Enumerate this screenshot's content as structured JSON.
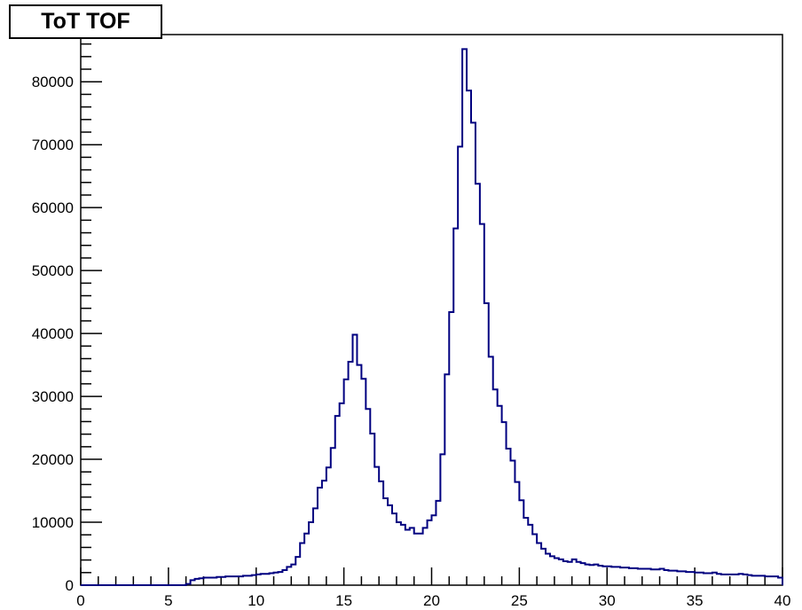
{
  "chart_data": {
    "type": "histogram",
    "title": "ToT TOF",
    "xlabel": "",
    "ylabel": "",
    "xlim": [
      0,
      40
    ],
    "ylim": [
      0,
      87500
    ],
    "grid": false,
    "line_color": "#000080",
    "x_ticks": [
      0,
      5,
      10,
      15,
      20,
      25,
      30,
      35,
      40
    ],
    "x_tick_labels": [
      "0",
      "5",
      "10",
      "15",
      "20",
      "25",
      "30",
      "35",
      "40"
    ],
    "y_ticks": [
      0,
      10000,
      20000,
      30000,
      40000,
      50000,
      60000,
      70000,
      80000
    ],
    "y_tick_labels": [
      "0",
      "10000",
      "20000",
      "30000",
      "40000",
      "50000",
      "60000",
      "70000",
      "80000"
    ],
    "bin_edges_start": 0,
    "bin_width": 0.25,
    "values": [
      0,
      0,
      0,
      0,
      0,
      0,
      0,
      0,
      0,
      0,
      0,
      0,
      0,
      0,
      0,
      0,
      0,
      0,
      0,
      0,
      0,
      0,
      0,
      0,
      200,
      800,
      1000,
      1100,
      1200,
      1200,
      1200,
      1300,
      1300,
      1400,
      1400,
      1400,
      1400,
      1500,
      1500,
      1600,
      1700,
      1800,
      1800,
      1900,
      2000,
      2100,
      2400,
      2900,
      3300,
      4500,
      6700,
      8200,
      10000,
      12200,
      15500,
      16600,
      18700,
      21800,
      26900,
      28900,
      32700,
      35500,
      39800,
      35000,
      32800,
      28000,
      24100,
      18800,
      16500,
      13800,
      12700,
      11400,
      10000,
      9600,
      8800,
      9100,
      8200,
      8200,
      9100,
      10300,
      11100,
      13400,
      20800,
      33500,
      43400,
      56700,
      69700,
      85200,
      78600,
      73500,
      63800,
      57400,
      44800,
      36300,
      31100,
      28500,
      25900,
      21700,
      19800,
      16400,
      13500,
      10700,
      9600,
      8100,
      6700,
      5800,
      5000,
      4600,
      4300,
      4100,
      3800,
      3700,
      4100,
      3700,
      3500,
      3300,
      3200,
      3300,
      3100,
      3000,
      3000,
      2900,
      2900,
      2800,
      2800,
      2700,
      2700,
      2600,
      2600,
      2600,
      2500,
      2500,
      2600,
      2400,
      2300,
      2300,
      2200,
      2200,
      2100,
      2100,
      2000,
      2000,
      1900,
      1900,
      2000,
      1800,
      1700,
      1700,
      1700,
      1700,
      1800,
      1700,
      1600,
      1500,
      1500,
      1500,
      1400,
      1400,
      1400,
      1200
    ]
  }
}
